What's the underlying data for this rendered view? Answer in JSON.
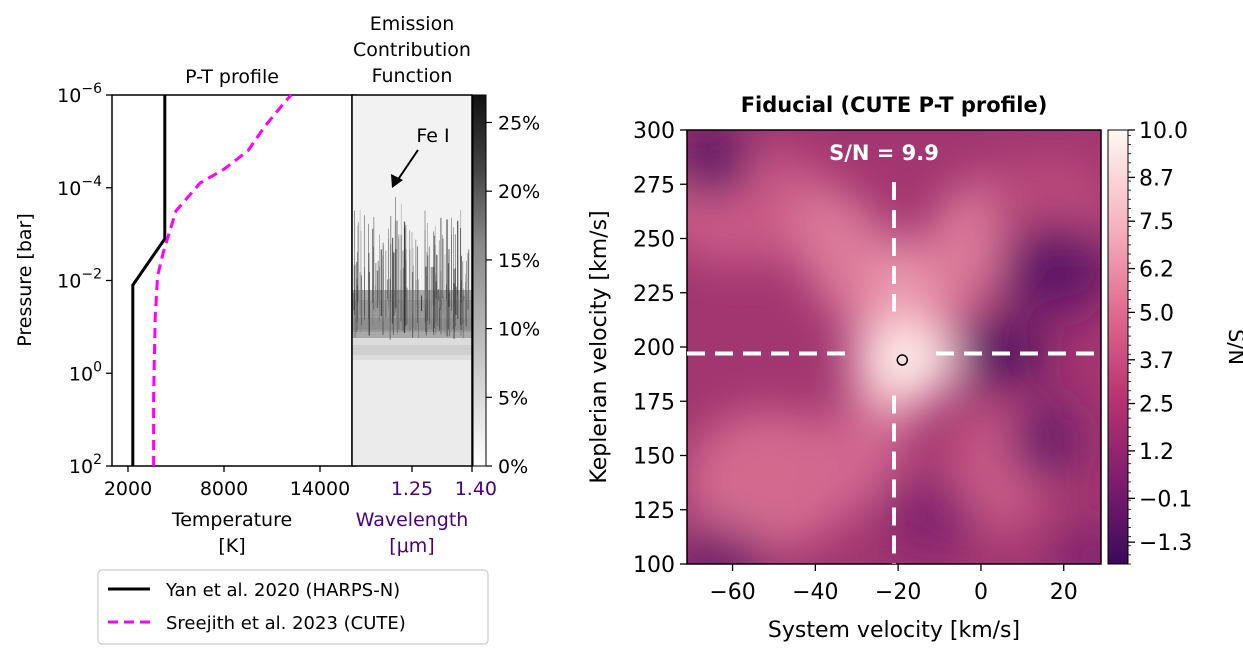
{
  "colors": {
    "pt_cute": "#ff00ff",
    "pt_harps": "#000000",
    "wavelength_text": "#4b0082",
    "heatmap_low": "#3b0a5a",
    "heatmap_high": "#fff8f2",
    "marker_line": "#ffffff"
  },
  "chart_data": [
    {
      "id": "pt_profile",
      "type": "line",
      "title": "P-T profile",
      "xlabel_line1": "Temperature",
      "xlabel_line2": "[K]",
      "ylabel": "Pressure [bar]",
      "xlim": [
        1000,
        16000
      ],
      "ylim_log10": [
        2,
        -6
      ],
      "xticks": [
        2000,
        8000,
        14000
      ],
      "xtick_labels": [
        "2000",
        "8000",
        "14000"
      ],
      "yticks_log10": [
        -6,
        -4,
        -2,
        0,
        2
      ],
      "ytick_labels": [
        {
          "base": "10",
          "exp": "−6"
        },
        {
          "base": "10",
          "exp": "−4"
        },
        {
          "base": "10",
          "exp": "−2"
        },
        {
          "base": "10",
          "exp": "0"
        },
        {
          "base": "10",
          "exp": "2"
        }
      ],
      "series": [
        {
          "name": "Yan et al. 2020 (HARPS-N)",
          "style": "solid",
          "points": [
            [
              2300,
              2
            ],
            [
              2300,
              -1.9
            ],
            [
              4300,
              -2.9
            ],
            [
              4300,
              -6
            ]
          ]
        },
        {
          "name": "Sreejith et al. 2023 (CUTE)",
          "style": "dashed",
          "points": [
            [
              3600,
              2
            ],
            [
              3600,
              0.5
            ],
            [
              3700,
              -1.2
            ],
            [
              3850,
              -2.1
            ],
            [
              4200,
              -2.6
            ],
            [
              5000,
              -3.5
            ],
            [
              6500,
              -4.1
            ],
            [
              8000,
              -4.4
            ],
            [
              9500,
              -4.8
            ],
            [
              10500,
              -5.3
            ],
            [
              11200,
              -5.6
            ],
            [
              11800,
              -5.85
            ],
            [
              12200,
              -6
            ]
          ]
        }
      ],
      "legend": {
        "position": "bottom-outside",
        "entries": [
          "Yan et al. 2020 (HARPS-N)",
          "Sreejith et al. 2023 (CUTE)"
        ]
      }
    },
    {
      "id": "emission_contribution",
      "type": "heatmap",
      "title_lines": [
        "Emission",
        "Contribution",
        "Function"
      ],
      "xlabel_line1": "Wavelength",
      "xlabel_line2": "[μm]",
      "xtick_labels": [
        "1.25",
        "1.40"
      ],
      "xticks": [
        1.25,
        1.4
      ],
      "xlim": [
        1.1,
        1.4
      ],
      "annotation": "Fe I",
      "colorbar": {
        "ticks": [
          0,
          5,
          10,
          15,
          20,
          25
        ],
        "tick_labels": [
          "0%",
          "5%",
          "10%",
          "15%",
          "20%",
          "25%"
        ],
        "range": [
          0,
          27
        ]
      }
    },
    {
      "id": "fiducial_map",
      "type": "heatmap",
      "title": "Fiducial (CUTE P-T profile)",
      "xlabel": "System velocity [km/s]",
      "ylabel": "Keplerian velocity [km/s]",
      "xlim": [
        -71,
        29
      ],
      "ylim": [
        100,
        300
      ],
      "xticks": [
        -60,
        -40,
        -20,
        0,
        20
      ],
      "xtick_labels": [
        "−60",
        "−40",
        "−20",
        "0",
        "20"
      ],
      "yticks": [
        100,
        125,
        150,
        175,
        200,
        225,
        250,
        275,
        300
      ],
      "ytick_labels": [
        "100",
        "125",
        "150",
        "175",
        "200",
        "225",
        "250",
        "275",
        "300"
      ],
      "annotation": "S/N = 9.9",
      "peak_sn": 9.9,
      "injected_vsys": -21,
      "injected_kp": 197,
      "detected_point": {
        "vsys": -19,
        "kp": 194
      },
      "colorbar": {
        "label": "S/N",
        "range": [
          -1.9,
          10.0
        ],
        "ticks": [
          10.0,
          8.7,
          7.5,
          6.2,
          5.0,
          3.7,
          2.5,
          1.2,
          -0.1,
          -1.3
        ],
        "tick_labels": [
          "10.0",
          "8.7",
          "7.5",
          "6.2",
          "5.0",
          "3.7",
          "2.5",
          "1.2",
          "−0.1",
          "−1.3"
        ]
      }
    }
  ]
}
